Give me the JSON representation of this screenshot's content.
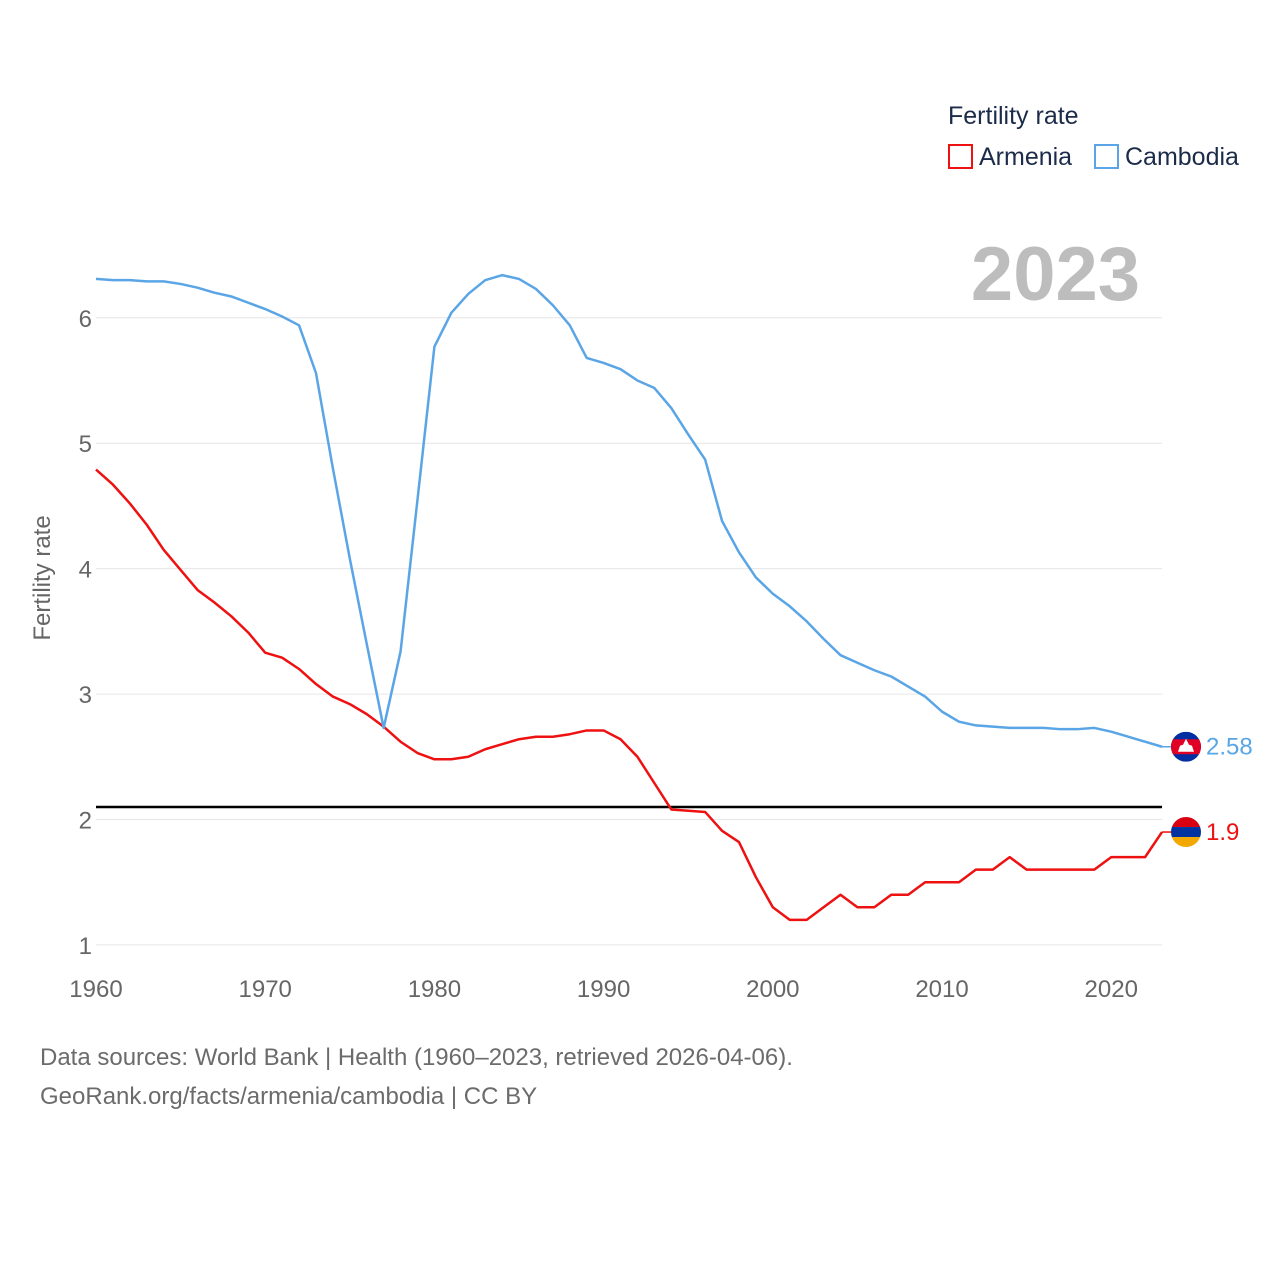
{
  "chart_data": {
    "type": "line",
    "title": "",
    "xlabel": "",
    "ylabel": "Fertility rate",
    "xlim": [
      1960,
      2023
    ],
    "ylim": [
      0.8,
      6.7
    ],
    "x_ticks": [
      1960,
      1970,
      1980,
      1990,
      2000,
      2010,
      2020
    ],
    "y_ticks": [
      1,
      2,
      3,
      4,
      5,
      6
    ],
    "legend_title": "Fertility rate",
    "legend_position": "top-right",
    "highlight_year": "2023",
    "reference_line": 2.1,
    "x": [
      1960,
      1961,
      1962,
      1963,
      1964,
      1965,
      1966,
      1967,
      1968,
      1969,
      1970,
      1971,
      1972,
      1973,
      1974,
      1975,
      1976,
      1977,
      1978,
      1979,
      1980,
      1981,
      1982,
      1983,
      1984,
      1985,
      1986,
      1987,
      1988,
      1989,
      1990,
      1991,
      1992,
      1993,
      1994,
      1995,
      1996,
      1997,
      1998,
      1999,
      2000,
      2001,
      2002,
      2003,
      2004,
      2005,
      2006,
      2007,
      2008,
      2009,
      2010,
      2011,
      2012,
      2013,
      2014,
      2015,
      2016,
      2017,
      2018,
      2019,
      2020,
      2021,
      2022,
      2023
    ],
    "series": [
      {
        "name": "Armenia",
        "color": "#ee1111",
        "end_label": "1.9",
        "flag": "armenia",
        "values": [
          4.79,
          4.67,
          4.52,
          4.35,
          4.15,
          3.99,
          3.83,
          3.73,
          3.62,
          3.49,
          3.33,
          3.29,
          3.2,
          3.08,
          2.98,
          2.92,
          2.84,
          2.74,
          2.62,
          2.53,
          2.48,
          2.48,
          2.5,
          2.56,
          2.6,
          2.64,
          2.66,
          2.66,
          2.68,
          2.71,
          2.71,
          2.64,
          2.5,
          2.29,
          2.08,
          2.07,
          2.06,
          1.91,
          1.82,
          1.54,
          1.3,
          1.2,
          1.2,
          1.3,
          1.4,
          1.3,
          1.3,
          1.4,
          1.4,
          1.5,
          1.5,
          1.5,
          1.6,
          1.6,
          1.7,
          1.6,
          1.6,
          1.6,
          1.6,
          1.6,
          1.7,
          1.7,
          1.7,
          1.9
        ]
      },
      {
        "name": "Cambodia",
        "color": "#5aa5e6",
        "end_label": "2.58",
        "flag": "cambodia",
        "values": [
          6.31,
          6.3,
          6.3,
          6.29,
          6.29,
          6.27,
          6.24,
          6.2,
          6.17,
          6.12,
          6.07,
          6.01,
          5.94,
          5.56,
          4.8,
          4.08,
          3.4,
          2.73,
          3.34,
          4.55,
          5.77,
          6.04,
          6.19,
          6.3,
          6.34,
          6.31,
          6.23,
          6.1,
          5.94,
          5.68,
          5.64,
          5.59,
          5.5,
          5.44,
          5.28,
          5.07,
          4.87,
          4.38,
          4.13,
          3.93,
          3.8,
          3.7,
          3.58,
          3.44,
          3.31,
          3.25,
          3.19,
          3.14,
          3.06,
          2.98,
          2.86,
          2.78,
          2.75,
          2.74,
          2.73,
          2.73,
          2.73,
          2.72,
          2.72,
          2.73,
          2.7,
          2.66,
          2.62,
          2.58
        ]
      }
    ]
  },
  "footer": {
    "sources": "Data sources: World Bank | Health (1960–2023, retrieved 2026-04-06).",
    "credit": "GeoRank.org/facts/armenia/cambodia | CC BY"
  }
}
